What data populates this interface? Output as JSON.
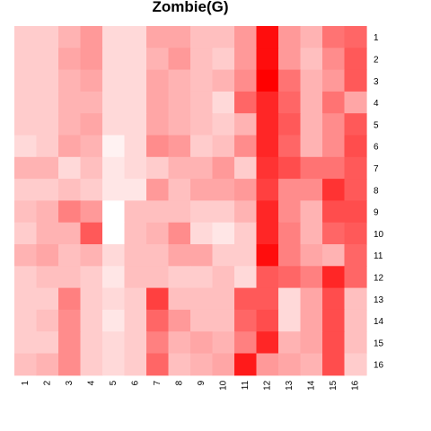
{
  "chart_data": {
    "type": "heatmap",
    "title": "Zombie(G)",
    "xlabel": "",
    "ylabel": "",
    "x_categories": [
      "1",
      "2",
      "3",
      "4",
      "5",
      "6",
      "7",
      "8",
      "9",
      "10",
      "11",
      "12",
      "13",
      "14",
      "15",
      "16"
    ],
    "y_categories": [
      "1",
      "2",
      "3",
      "4",
      "5",
      "6",
      "7",
      "8",
      "9",
      "10",
      "11",
      "12",
      "13",
      "14",
      "15",
      "16"
    ],
    "value_range": [
      0,
      1
    ],
    "color_low": "#ffffff",
    "color_high": "#ff0000",
    "legend": "none",
    "grid": false,
    "values": [
      [
        0.2,
        0.2,
        0.3,
        0.4,
        0.15,
        0.15,
        0.35,
        0.35,
        0.25,
        0.25,
        0.4,
        0.95,
        0.4,
        0.3,
        0.55,
        0.6
      ],
      [
        0.2,
        0.2,
        0.35,
        0.4,
        0.15,
        0.15,
        0.3,
        0.4,
        0.25,
        0.2,
        0.4,
        0.95,
        0.4,
        0.25,
        0.45,
        0.65
      ],
      [
        0.2,
        0.2,
        0.3,
        0.35,
        0.15,
        0.15,
        0.35,
        0.3,
        0.25,
        0.3,
        0.45,
        1.0,
        0.55,
        0.3,
        0.4,
        0.65
      ],
      [
        0.2,
        0.2,
        0.3,
        0.3,
        0.15,
        0.15,
        0.35,
        0.3,
        0.25,
        0.15,
        0.6,
        0.85,
        0.6,
        0.3,
        0.55,
        0.35
      ],
      [
        0.2,
        0.2,
        0.3,
        0.35,
        0.15,
        0.15,
        0.35,
        0.3,
        0.25,
        0.2,
        0.3,
        0.85,
        0.65,
        0.3,
        0.45,
        0.65
      ],
      [
        0.15,
        0.2,
        0.35,
        0.3,
        0.05,
        0.15,
        0.45,
        0.4,
        0.2,
        0.25,
        0.45,
        0.85,
        0.6,
        0.3,
        0.45,
        0.7
      ],
      [
        0.3,
        0.3,
        0.15,
        0.25,
        0.1,
        0.15,
        0.2,
        0.3,
        0.3,
        0.4,
        0.2,
        0.8,
        0.7,
        0.55,
        0.55,
        0.65
      ],
      [
        0.2,
        0.2,
        0.25,
        0.2,
        0.1,
        0.1,
        0.4,
        0.25,
        0.35,
        0.35,
        0.4,
        0.75,
        0.45,
        0.45,
        0.8,
        0.65
      ],
      [
        0.25,
        0.3,
        0.5,
        0.4,
        0.0,
        0.25,
        0.25,
        0.25,
        0.2,
        0.2,
        0.3,
        0.85,
        0.45,
        0.3,
        0.7,
        0.7
      ],
      [
        0.2,
        0.3,
        0.3,
        0.65,
        0.0,
        0.25,
        0.3,
        0.45,
        0.15,
        0.1,
        0.2,
        0.85,
        0.5,
        0.3,
        0.6,
        0.65
      ],
      [
        0.3,
        0.35,
        0.25,
        0.3,
        0.15,
        0.25,
        0.25,
        0.35,
        0.35,
        0.2,
        0.2,
        0.95,
        0.5,
        0.35,
        0.3,
        0.6
      ],
      [
        0.2,
        0.25,
        0.25,
        0.2,
        0.1,
        0.25,
        0.25,
        0.2,
        0.2,
        0.25,
        0.15,
        0.65,
        0.6,
        0.5,
        0.85,
        0.6
      ],
      [
        0.2,
        0.2,
        0.5,
        0.2,
        0.15,
        0.2,
        0.75,
        0.25,
        0.25,
        0.25,
        0.65,
        0.65,
        0.15,
        0.35,
        0.7,
        0.25
      ],
      [
        0.2,
        0.25,
        0.45,
        0.2,
        0.1,
        0.2,
        0.6,
        0.4,
        0.25,
        0.25,
        0.6,
        0.7,
        0.15,
        0.35,
        0.7,
        0.25
      ],
      [
        0.2,
        0.2,
        0.45,
        0.2,
        0.15,
        0.2,
        0.5,
        0.3,
        0.35,
        0.3,
        0.5,
        0.85,
        0.3,
        0.35,
        0.7,
        0.25
      ],
      [
        0.25,
        0.3,
        0.45,
        0.2,
        0.15,
        0.2,
        0.6,
        0.25,
        0.3,
        0.35,
        0.9,
        0.4,
        0.35,
        0.3,
        0.7,
        0.2
      ]
    ]
  }
}
